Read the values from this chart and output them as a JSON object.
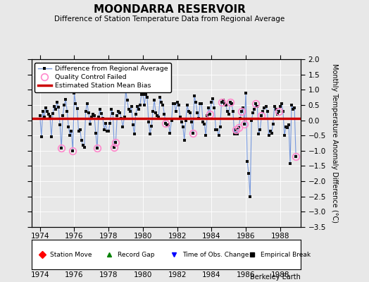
{
  "title": "MOONDARRA RESERVOIR",
  "subtitle": "Difference of Station Temperature Data from Regional Average",
  "ylabel": "Monthly Temperature Anomaly Difference (°C)",
  "background_color": "#e8e8e8",
  "plot_bg_color": "#e8e8e8",
  "bias_value": 0.07,
  "ylim": [
    -3.5,
    2.0
  ],
  "xlim": [
    1973.5,
    1989.2
  ],
  "xticks": [
    1974,
    1976,
    1978,
    1980,
    1982,
    1984,
    1986,
    1988
  ],
  "yticks": [
    -3.5,
    -3.0,
    -2.5,
    -2.0,
    -1.5,
    -1.0,
    -0.5,
    0.0,
    0.5,
    1.0,
    1.5,
    2.0
  ],
  "time_series": [
    1974.0,
    1974.083,
    1974.167,
    1974.25,
    1974.333,
    1974.417,
    1974.5,
    1974.583,
    1974.667,
    1974.75,
    1974.833,
    1974.917,
    1975.0,
    1975.083,
    1975.167,
    1975.25,
    1975.333,
    1975.417,
    1975.5,
    1975.583,
    1975.667,
    1975.75,
    1975.833,
    1975.917,
    1976.0,
    1976.083,
    1976.167,
    1976.25,
    1976.333,
    1976.417,
    1976.5,
    1976.583,
    1976.667,
    1976.75,
    1976.833,
    1976.917,
    1977.0,
    1977.083,
    1977.167,
    1977.25,
    1977.333,
    1977.417,
    1977.5,
    1977.583,
    1977.667,
    1977.75,
    1977.833,
    1977.917,
    1978.0,
    1978.083,
    1978.167,
    1978.25,
    1978.333,
    1978.417,
    1978.5,
    1978.583,
    1978.667,
    1978.75,
    1978.833,
    1978.917,
    1979.0,
    1979.083,
    1979.167,
    1979.25,
    1979.333,
    1979.417,
    1979.5,
    1979.583,
    1979.667,
    1979.75,
    1979.833,
    1979.917,
    1980.0,
    1980.083,
    1980.167,
    1980.25,
    1980.333,
    1980.417,
    1980.5,
    1980.583,
    1980.667,
    1980.75,
    1980.833,
    1980.917,
    1981.0,
    1981.083,
    1981.167,
    1981.25,
    1981.333,
    1981.417,
    1981.5,
    1981.583,
    1981.667,
    1981.75,
    1981.833,
    1981.917,
    1982.0,
    1982.083,
    1982.167,
    1982.25,
    1982.333,
    1982.417,
    1982.5,
    1982.583,
    1982.667,
    1982.75,
    1982.833,
    1982.917,
    1983.0,
    1983.083,
    1983.167,
    1983.25,
    1983.333,
    1983.417,
    1983.5,
    1983.583,
    1983.667,
    1983.75,
    1983.833,
    1983.917,
    1984.0,
    1984.083,
    1984.167,
    1984.25,
    1984.333,
    1984.417,
    1984.5,
    1984.583,
    1984.667,
    1984.75,
    1984.833,
    1984.917,
    1985.0,
    1985.083,
    1985.167,
    1985.25,
    1985.333,
    1985.417,
    1985.5,
    1985.583,
    1985.667,
    1985.75,
    1985.833,
    1985.917,
    1986.0,
    1986.083,
    1986.167,
    1986.25,
    1986.333,
    1986.417,
    1986.5,
    1986.583,
    1986.667,
    1986.75,
    1986.833,
    1986.917,
    1987.0,
    1987.083,
    1987.167,
    1987.25,
    1987.333,
    1987.417,
    1987.5,
    1987.583,
    1987.667,
    1987.75,
    1987.833,
    1987.917,
    1988.0,
    1988.083,
    1988.167,
    1988.25,
    1988.333,
    1988.417,
    1988.5,
    1988.583,
    1988.667,
    1988.75,
    1988.833,
    1988.917
  ],
  "values": [
    0.15,
    -0.55,
    0.28,
    0.1,
    0.4,
    0.3,
    0.2,
    0.12,
    -0.55,
    0.22,
    0.45,
    0.35,
    0.58,
    0.42,
    -0.15,
    -0.92,
    0.15,
    0.5,
    0.68,
    0.3,
    -0.22,
    -0.5,
    -0.35,
    -1.0,
    0.88,
    0.55,
    0.38,
    -0.35,
    -0.3,
    -0.65,
    -0.82,
    -0.9,
    0.3,
    0.55,
    0.25,
    -0.12,
    0.1,
    0.2,
    0.15,
    -0.42,
    -0.92,
    0.1,
    0.35,
    0.22,
    0.05,
    -0.32,
    -0.1,
    -0.35,
    -0.35,
    -0.1,
    0.35,
    0.22,
    -0.88,
    -0.72,
    0.15,
    0.3,
    0.25,
    0.05,
    -0.22,
    0.1,
    1.0,
    0.65,
    0.35,
    0.3,
    0.45,
    -0.15,
    -0.45,
    0.2,
    0.45,
    0.35,
    0.5,
    0.85,
    0.85,
    0.5,
    0.85,
    0.75,
    -0.05,
    -0.45,
    -0.2,
    0.3,
    0.65,
    0.25,
    0.15,
    0.1,
    0.75,
    0.6,
    0.5,
    0.2,
    -0.1,
    -0.15,
    -0.15,
    -0.42,
    0.0,
    0.55,
    0.55,
    0.3,
    0.6,
    0.5,
    0.1,
    -0.05,
    -0.22,
    -0.65,
    0.0,
    0.5,
    0.3,
    0.25,
    -0.05,
    -0.42,
    0.8,
    0.6,
    0.25,
    0.05,
    0.55,
    0.55,
    -0.05,
    -0.12,
    -0.5,
    0.15,
    0.4,
    0.2,
    0.6,
    0.7,
    0.4,
    -0.3,
    -0.3,
    -0.5,
    -0.22,
    0.6,
    0.65,
    0.55,
    0.5,
    0.3,
    0.2,
    0.6,
    0.55,
    0.3,
    -0.45,
    -0.3,
    -0.45,
    -0.25,
    0.05,
    0.3,
    0.4,
    -0.12,
    0.9,
    -1.35,
    -1.75,
    -2.5,
    0.0,
    0.25,
    0.35,
    0.55,
    0.45,
    -0.45,
    -0.3,
    0.15,
    0.3,
    0.4,
    0.45,
    0.3,
    -0.5,
    -0.35,
    -0.42,
    -0.12,
    0.45,
    0.35,
    0.2,
    0.3,
    0.45,
    0.55,
    0.3,
    -0.5,
    -0.22,
    -0.25,
    -0.15,
    -1.42,
    0.5,
    0.35,
    0.4,
    -1.2
  ],
  "qc_failed_indices": [
    15,
    23,
    40,
    52,
    53,
    88,
    107,
    119,
    127,
    133,
    137,
    139,
    141,
    143,
    151,
    155,
    167,
    179
  ],
  "line_color": "#7799dd",
  "marker_color": "#111111",
  "qc_color": "#ff88cc",
  "bias_color": "#cc0000",
  "berkeley_earth_text": "Berkeley Earth"
}
